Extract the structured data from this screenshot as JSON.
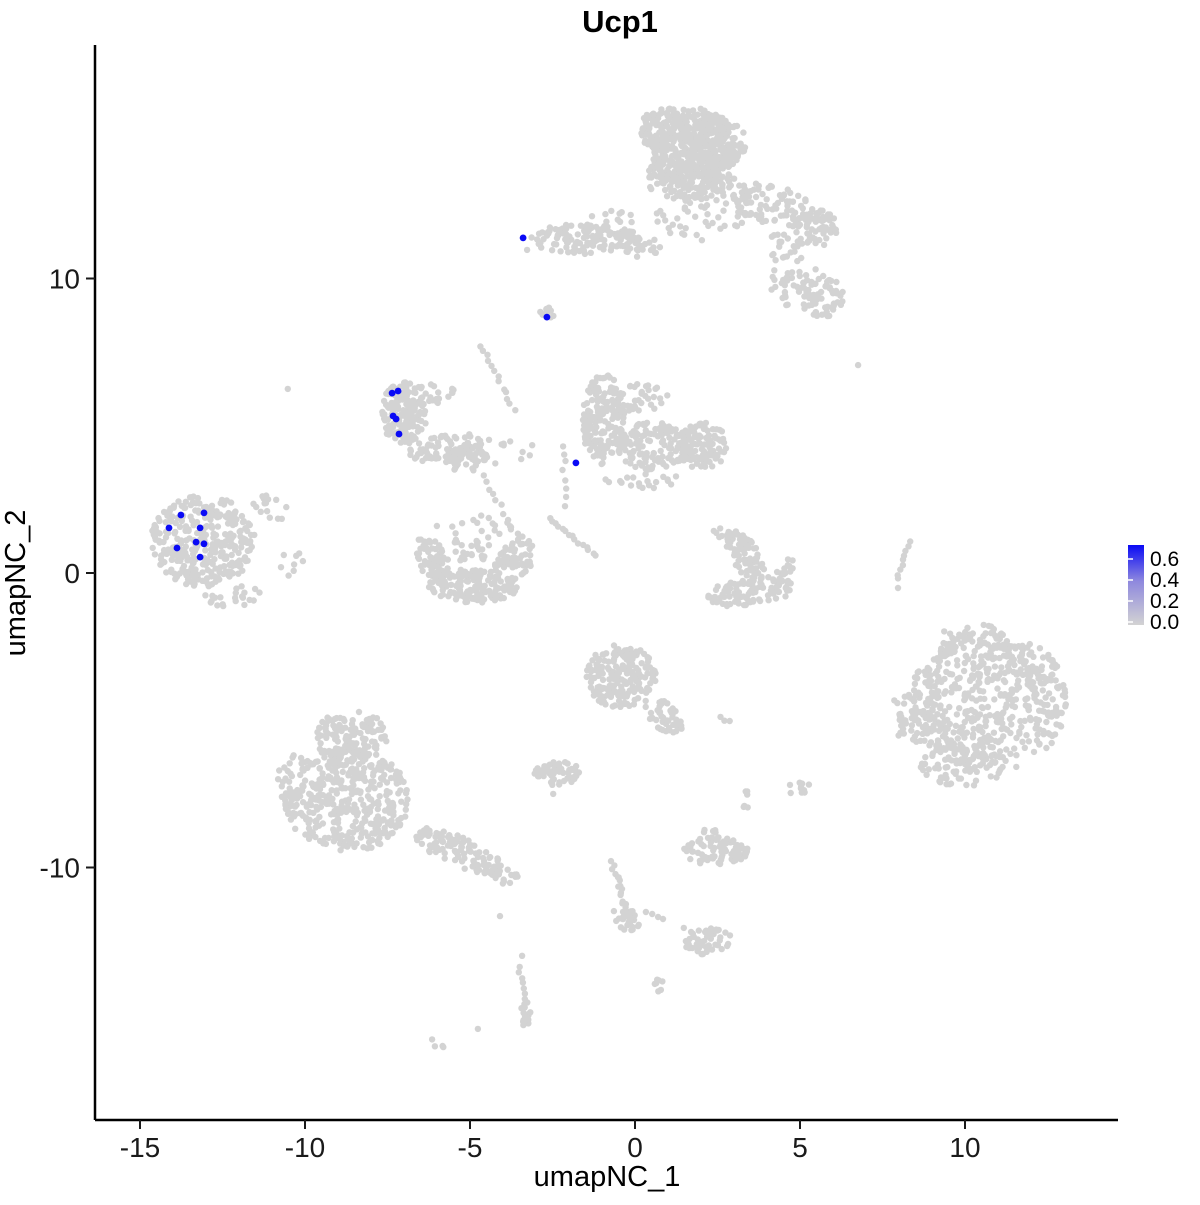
{
  "title": "Ucp1",
  "axes": {
    "x_label": "umapNC_1",
    "y_label": "umapNC_2",
    "x_ticks": [
      -15,
      -10,
      -5,
      0,
      5,
      10
    ],
    "y_ticks": [
      -10,
      0,
      10
    ],
    "x_range": [
      -16.4,
      14.6
    ],
    "y_range": [
      -18.6,
      17.9
    ]
  },
  "legend": {
    "tick_values": [
      0.6,
      0.4,
      0.2,
      0.0
    ],
    "low_color": "#D3D3D3",
    "mid_color": "#8E88DE",
    "high_color": "#0A0AF5"
  },
  "colors": {
    "background": "#FFFFFF",
    "point_grey": "#D3D3D3",
    "point_blue": "#0A0AF5",
    "axis_line": "#000000"
  },
  "chart_data": {
    "type": "scatter",
    "title": "Ucp1",
    "xlabel": "umapNC_1",
    "ylabel": "umapNC_2",
    "xlim": [
      -16.4,
      14.6
    ],
    "ylim": [
      -18.6,
      17.9
    ],
    "legend_position": "right",
    "grid": false,
    "description": "UMAP feature plot of Ucp1 expression; grey points are cells with ~0 expression, blue points are Ucp1-expressing cells (value ~0.6).",
    "grey_blobs": [
      [
        1.76,
        14.43,
        1.27,
        1.36,
        0,
        320
      ],
      [
        0.91,
        15.04,
        0.76,
        0.75,
        0,
        120
      ],
      [
        2.52,
        14.63,
        0.85,
        0.88,
        0,
        140
      ],
      [
        1.67,
        13.41,
        1.36,
        0.75,
        0,
        160
      ],
      [
        1.97,
        12.22,
        1.36,
        0.95,
        0,
        55
      ],
      [
        -0.76,
        11.82,
        1.06,
        0.51,
        0,
        22
      ],
      [
        4.09,
        12.5,
        1.36,
        0.68,
        -15,
        80
      ],
      [
        5.45,
        11.71,
        0.67,
        0.68,
        0,
        60
      ],
      [
        4.45,
        11.07,
        0.55,
        0.48,
        0,
        20
      ],
      [
        4.94,
        9.88,
        0.85,
        0.88,
        0,
        45
      ],
      [
        5.67,
        9.37,
        0.67,
        0.68,
        0,
        45
      ],
      [
        -1.52,
        11.34,
        1.67,
        0.51,
        0,
        120
      ],
      [
        0.24,
        11.07,
        0.55,
        0.37,
        0,
        25
      ],
      [
        -2.61,
        8.83,
        0.33,
        0.2,
        -35,
        10
      ],
      [
        -7.0,
        5.43,
        0.7,
        1.05,
        0,
        150
      ],
      [
        -5.67,
        4.24,
        1.21,
        0.48,
        8,
        80
      ],
      [
        -5.12,
        3.87,
        0.67,
        0.44,
        0,
        50
      ],
      [
        -6.15,
        6.08,
        0.73,
        0.41,
        0,
        22
      ],
      [
        -3.94,
        4.24,
        0.85,
        0.61,
        0,
        12
      ],
      [
        -0.94,
        5.19,
        0.67,
        1.56,
        0,
        180
      ],
      [
        0.52,
        4.31,
        1.09,
        0.81,
        0,
        130
      ],
      [
        1.97,
        4.31,
        0.85,
        0.81,
        0,
        110
      ],
      [
        0.15,
        5.94,
        0.85,
        0.48,
        0,
        35
      ],
      [
        0.15,
        3.16,
        1.21,
        0.34,
        0,
        20
      ],
      [
        -6.12,
        0.41,
        0.45,
        0.88,
        25,
        70
      ],
      [
        -4.91,
        -0.44,
        1.36,
        0.58,
        0,
        150
      ],
      [
        -3.67,
        0.37,
        0.52,
        0.95,
        -25,
        75
      ],
      [
        -5.0,
        0.75,
        0.85,
        0.37,
        0,
        25
      ],
      [
        -4.94,
        1.53,
        1.21,
        0.44,
        0,
        18
      ],
      [
        -13.09,
        1.09,
        1.58,
        1.56,
        0,
        330
      ],
      [
        -11.06,
        2.28,
        0.61,
        0.37,
        -35,
        16
      ],
      [
        -10.42,
        0.37,
        0.36,
        0.48,
        0,
        8
      ],
      [
        -12.21,
        -0.78,
        0.97,
        0.37,
        0,
        22
      ],
      [
        3.36,
        0.58,
        0.45,
        0.95,
        30,
        80
      ],
      [
        3.52,
        -0.64,
        1.33,
        0.48,
        8,
        100
      ],
      [
        4.58,
        0.17,
        0.3,
        0.41,
        0,
        12
      ],
      [
        2.64,
        1.32,
        0.36,
        0.27,
        0,
        8
      ],
      [
        10.7,
        -4.38,
        2.36,
        2.44,
        0,
        500
      ],
      [
        8.42,
        -4.86,
        0.73,
        0.95,
        0,
        50
      ],
      [
        9.91,
        -6.45,
        1.36,
        0.81,
        0,
        80
      ],
      [
        10.36,
        -2.31,
        1.21,
        0.58,
        0,
        40
      ],
      [
        11.97,
        -3.29,
        0.91,
        0.85,
        0,
        40
      ],
      [
        -0.42,
        -3.5,
        1.06,
        1.09,
        0,
        200
      ],
      [
        0.85,
        -4.86,
        0.79,
        0.41,
        -52,
        50
      ],
      [
        -2.36,
        -6.79,
        0.7,
        0.41,
        0,
        60
      ],
      [
        2.82,
        -4.92,
        0.24,
        0.17,
        0,
        3
      ],
      [
        5.03,
        -7.27,
        0.42,
        0.31,
        35,
        10
      ],
      [
        3.39,
        -7.64,
        0.18,
        0.37,
        0,
        6
      ],
      [
        2.45,
        -9.44,
        0.97,
        0.48,
        0,
        80
      ],
      [
        2.3,
        -8.86,
        0.3,
        0.24,
        0,
        6
      ],
      [
        -8.58,
        -5.57,
        1.15,
        0.88,
        0,
        130
      ],
      [
        -8.73,
        -7.71,
        1.88,
        1.77,
        0,
        380
      ],
      [
        -10.3,
        -7.2,
        0.55,
        1.19,
        0,
        40
      ],
      [
        -5.36,
        -9.44,
        1.58,
        0.48,
        -26,
        110
      ],
      [
        -3.94,
        -10.29,
        0.48,
        0.27,
        -25,
        18
      ],
      [
        -0.21,
        -11.82,
        0.39,
        0.37,
        0,
        25
      ],
      [
        2.24,
        -12.5,
        0.73,
        0.44,
        12,
        50
      ],
      [
        0.67,
        -13.89,
        0.18,
        0.37,
        20,
        7
      ],
      [
        -3.3,
        -14.94,
        0.21,
        0.48,
        0,
        14
      ],
      [
        -5.97,
        -15.99,
        0.24,
        0.14,
        -35,
        4
      ]
    ],
    "grey_chains": [
      [
        -4.67,
        7.71,
        -3.67,
        5.57,
        13,
        0.06
      ],
      [
        -2.18,
        4.35,
        -2.09,
        2.31,
        8,
        0.06
      ],
      [
        -4.64,
        3.33,
        -3.48,
        1.19,
        11,
        0.08
      ],
      [
        -2.61,
        1.87,
        -1.18,
        0.58,
        15,
        0.05
      ],
      [
        8.33,
        1.05,
        7.94,
        -0.2,
        9,
        0.04
      ],
      [
        -0.7,
        -9.85,
        -0.15,
        -11.82,
        20,
        0.07
      ],
      [
        -3.52,
        -13.41,
        -3.27,
        -14.6,
        8,
        0.04
      ]
    ],
    "grey_singles": [
      [
        6.76,
        7.06
      ],
      [
        -10.52,
        6.25
      ],
      [
        -3.27,
        10.97
      ],
      [
        7.97,
        -0.51
      ],
      [
        -2.48,
        -7.5
      ],
      [
        -4.09,
        -11.65
      ],
      [
        -0.64,
        -11.48
      ],
      [
        0.33,
        -11.51
      ],
      [
        0.52,
        -11.58
      ],
      [
        0.7,
        -11.68
      ],
      [
        0.85,
        -11.75
      ],
      [
        1.48,
        -12.05
      ],
      [
        1.7,
        -12.19
      ],
      [
        -4.76,
        -15.48
      ],
      [
        -3.42,
        -13.0
      ]
    ],
    "highlighted_points": [
      {
        "x": -3.39,
        "y": 11.38,
        "value": 0.6
      },
      {
        "x": -2.67,
        "y": 8.69,
        "value": 0.6
      },
      {
        "x": -7.36,
        "y": 6.11,
        "value": 0.6
      },
      {
        "x": -7.18,
        "y": 6.18,
        "value": 0.6
      },
      {
        "x": -7.33,
        "y": 5.33,
        "value": 0.6
      },
      {
        "x": -7.24,
        "y": 5.23,
        "value": 0.6
      },
      {
        "x": -7.15,
        "y": 4.72,
        "value": 0.6
      },
      {
        "x": -1.79,
        "y": 3.74,
        "value": 0.6
      },
      {
        "x": -13.76,
        "y": 1.97,
        "value": 0.6
      },
      {
        "x": -13.06,
        "y": 2.04,
        "value": 0.6
      },
      {
        "x": -14.12,
        "y": 1.53,
        "value": 0.6
      },
      {
        "x": -13.18,
        "y": 1.53,
        "value": 0.6
      },
      {
        "x": -13.3,
        "y": 1.05,
        "value": 0.6
      },
      {
        "x": -13.06,
        "y": 0.99,
        "value": 0.6
      },
      {
        "x": -13.88,
        "y": 0.85,
        "value": 0.6
      },
      {
        "x": -13.18,
        "y": 0.54,
        "value": 0.6
      }
    ]
  }
}
